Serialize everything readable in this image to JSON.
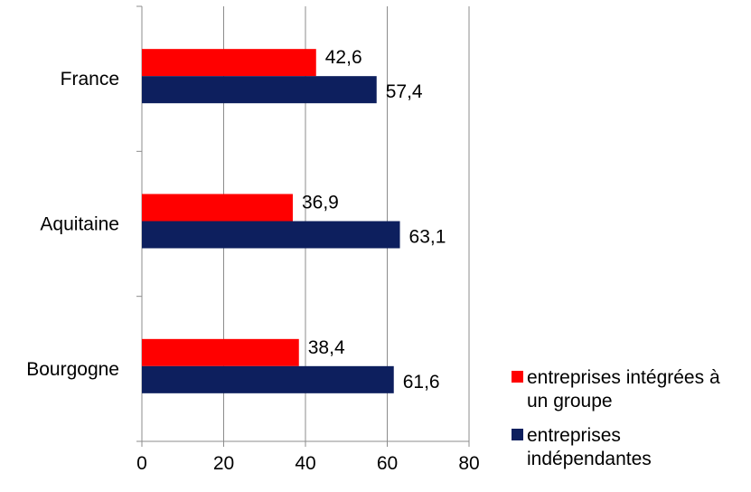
{
  "chart_data": {
    "type": "bar",
    "orientation": "horizontal",
    "categories": [
      "France",
      "Aquitaine",
      "Bourgogne"
    ],
    "series": [
      {
        "name": "entreprises intégrées à un groupe",
        "values": [
          42.6,
          36.9,
          38.4
        ],
        "labels": [
          "42,6",
          "36,9",
          "38,4"
        ],
        "color": "#ff0000"
      },
      {
        "name": "entreprises indépendantes",
        "values": [
          57.4,
          63.1,
          61.6
        ],
        "labels": [
          "57,4",
          "63,1",
          "61,6"
        ],
        "color": "#0d1f5e"
      }
    ],
    "xlim": [
      0,
      80
    ],
    "xticks": [
      "0",
      "20",
      "40",
      "60",
      "80"
    ],
    "grid": true,
    "legend_position": "bottom-right"
  },
  "legend": {
    "items": [
      {
        "label": "entreprises intégrées à un groupe",
        "color": "#ff0000"
      },
      {
        "label": "entreprises indépendantes",
        "color": "#0d1f5e"
      }
    ]
  }
}
